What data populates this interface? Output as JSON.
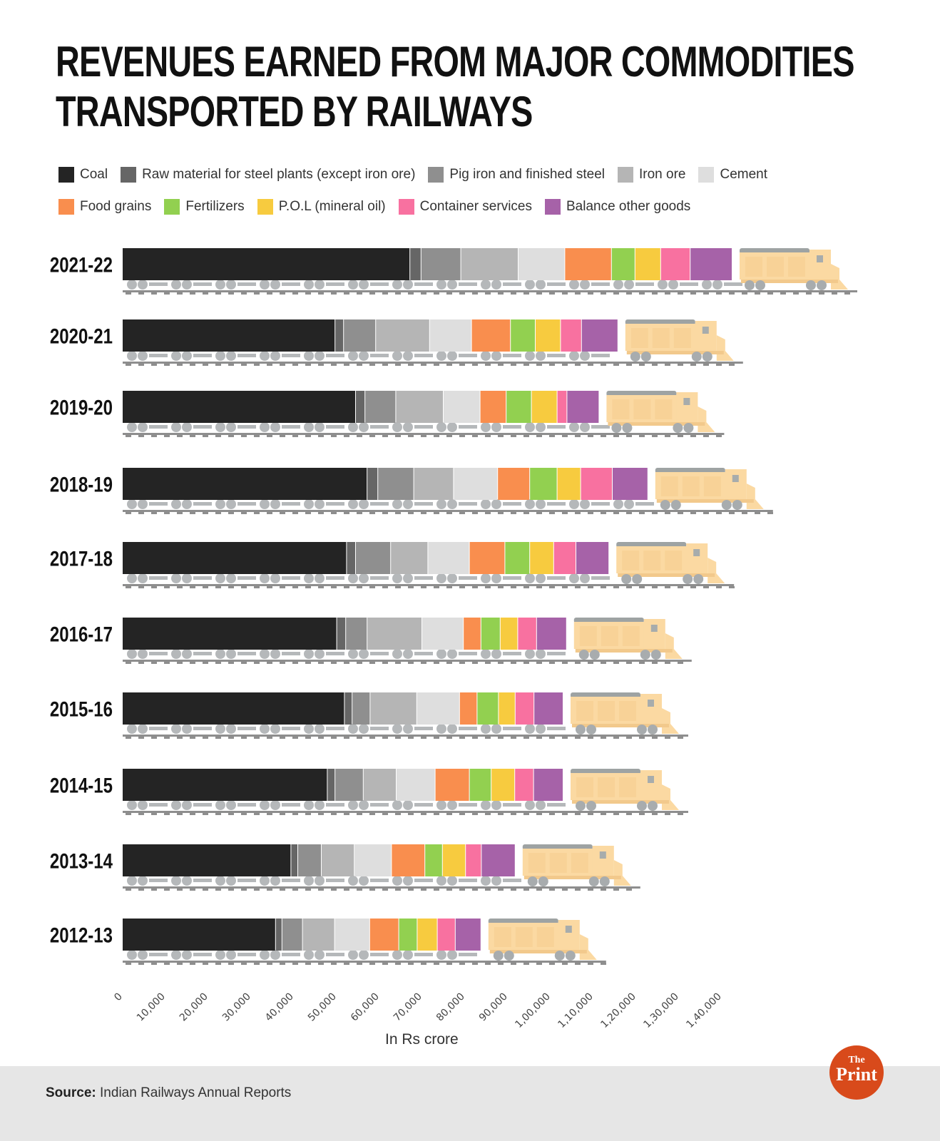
{
  "title_lines": [
    "REVENUES EARNED FROM MAJOR COMMODITIES",
    "TRANSPORTED BY RAILWAYS"
  ],
  "source": {
    "label": "Source:",
    "text": "Indian Railways Annual Reports"
  },
  "logo": {
    "the": "The",
    "print": "Print"
  },
  "chart_data": {
    "type": "bar",
    "orientation": "horizontal",
    "stacked": true,
    "title": "REVENUES EARNED FROM MAJOR COMMODITIES TRANSPORTED BY RAILWAYS",
    "xlabel": "In Rs crore",
    "ylabel": "",
    "xlim": [
      0,
      140000
    ],
    "xticks": [
      "0",
      "10,000",
      "20,000",
      "30,000",
      "40,000",
      "50,000",
      "60,000",
      "70,000",
      "80,000",
      "90,000",
      "1,00,000",
      "1,10,000",
      "1,20,000",
      "1,30,000",
      "1,40,000"
    ],
    "grid": false,
    "legend_position": "top",
    "categories": [
      "2021-22",
      "2020-21",
      "2019-20",
      "2018-19",
      "2017-18",
      "2016-17",
      "2015-16",
      "2014-15",
      "2013-14",
      "2012-13"
    ],
    "series": [
      {
        "name": "Coal",
        "color": "#242424",
        "values": [
          67200,
          49700,
          54500,
          57200,
          52400,
          50100,
          51900,
          47900,
          39400,
          35800
        ]
      },
      {
        "name": "Raw material for steel plants (except iron ore)",
        "color": "#666666",
        "values": [
          2600,
          2000,
          2200,
          2500,
          2100,
          2100,
          1800,
          1800,
          1600,
          1500
        ]
      },
      {
        "name": "Pig iron and finished steel",
        "color": "#8f8f8f",
        "values": [
          9300,
          7500,
          7200,
          8400,
          8200,
          5000,
          4200,
          6600,
          5500,
          4800
        ]
      },
      {
        "name": "Iron ore",
        "color": "#b5b5b5",
        "values": [
          13400,
          12600,
          11100,
          9300,
          8700,
          12800,
          10900,
          7700,
          7700,
          7500
        ]
      },
      {
        "name": "Cement",
        "color": "#dedede",
        "values": [
          10900,
          9800,
          8600,
          10300,
          9700,
          9700,
          10000,
          9100,
          8700,
          8200
        ]
      },
      {
        "name": "Food grains",
        "color": "#f98e4e",
        "values": [
          10900,
          9100,
          6100,
          7500,
          8300,
          4100,
          4100,
          8000,
          7800,
          6800
        ]
      },
      {
        "name": "Fertilizers",
        "color": "#92d050",
        "values": [
          5500,
          5800,
          5900,
          6400,
          5800,
          4500,
          5000,
          5100,
          4100,
          4300
        ]
      },
      {
        "name": "P.O.L (mineral oil)",
        "color": "#f7cb3f",
        "values": [
          6000,
          5900,
          6000,
          5500,
          5600,
          4100,
          3900,
          5500,
          5400,
          4700
        ]
      },
      {
        "name": "Container services",
        "color": "#f871a0",
        "values": [
          6900,
          4900,
          2300,
          7400,
          5200,
          4400,
          4400,
          4400,
          3700,
          4200
        ]
      },
      {
        "name": "Balance other goods",
        "color": "#a662a8",
        "values": [
          9800,
          8500,
          7500,
          8300,
          7700,
          7000,
          6800,
          6900,
          7900,
          6000
        ]
      }
    ]
  }
}
